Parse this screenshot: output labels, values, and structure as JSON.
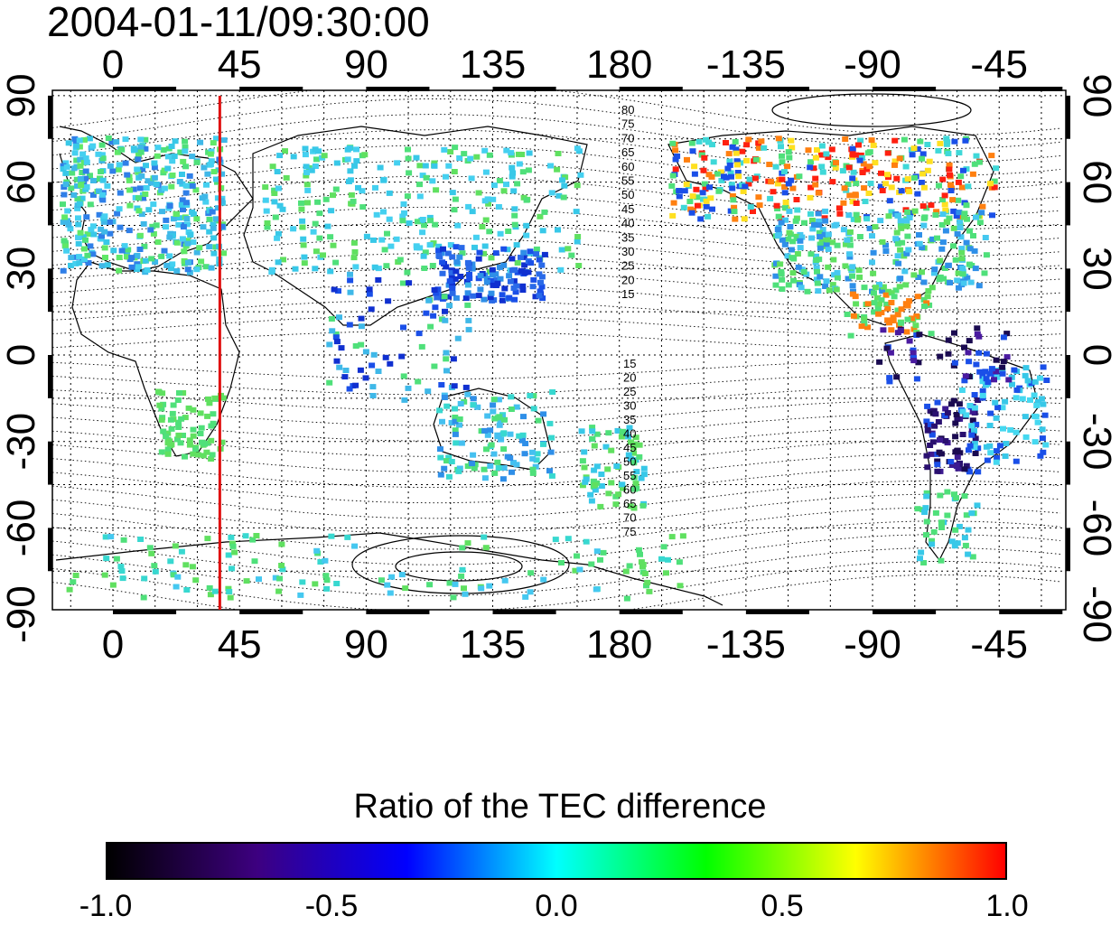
{
  "timestamp": "2004-01-11/09:30:00",
  "axes": {
    "lon_ticks": [
      "0",
      "45",
      "90",
      "135",
      "180",
      "-135",
      "-90",
      "-45"
    ],
    "lat_ticks": [
      "90",
      "60",
      "30",
      "0",
      "-30",
      "-60",
      "-90"
    ]
  },
  "contour_labels": {
    "north": [
      "80",
      "75",
      "70",
      "65",
      "60",
      "55",
      "50",
      "45",
      "40",
      "35",
      "30",
      "25",
      "20",
      "15"
    ],
    "south": [
      "15",
      "20",
      "25",
      "30",
      "35",
      "40",
      "45",
      "50",
      "55",
      "60",
      "65",
      "70",
      "75"
    ]
  },
  "marker_line": {
    "longitude": 38,
    "color": "#e01010"
  },
  "colorbar": {
    "title": "Ratio of the TEC difference",
    "labels": [
      "-1.0",
      "-0.5",
      "0.0",
      "0.5",
      "1.0"
    ],
    "stops": [
      "#000000",
      "#3d0080",
      "#0000ff",
      "#00ffff",
      "#00ff00",
      "#ffff00",
      "#ff0000"
    ]
  },
  "data_regions": [
    {
      "name": "europe",
      "color": "#3fb8e8"
    },
    {
      "name": "north-america",
      "color": "#4fe07a"
    },
    {
      "name": "east-asia",
      "color": "#1a4fe8"
    },
    {
      "name": "south-america-south",
      "color": "#1a0a50"
    },
    {
      "name": "australia",
      "color": "#38d8d0"
    }
  ]
}
